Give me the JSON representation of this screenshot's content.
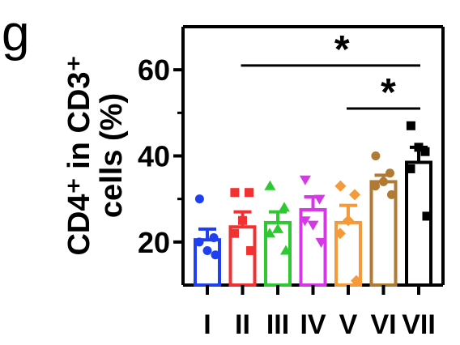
{
  "panel_label": "g",
  "chart_data": {
    "type": "bar",
    "categories": [
      "I",
      "II",
      "III",
      "IV",
      "V",
      "VI",
      "VII"
    ],
    "colors": [
      "#1f3ff2",
      "#f23232",
      "#2ec832",
      "#d638e8",
      "#f59a3a",
      "#b07a35",
      "#000000"
    ],
    "means": [
      20.5,
      23.5,
      24.5,
      27.5,
      24.5,
      34,
      38.5
    ],
    "sem": [
      2.5,
      3.5,
      2.5,
      3,
      4,
      1.5,
      3.5
    ],
    "points": [
      [
        30,
        21,
        18,
        20,
        17
      ],
      [
        31.5,
        31.5,
        25,
        22,
        18
      ],
      [
        33,
        28,
        23,
        22,
        18
      ],
      [
        34.5,
        30,
        24,
        25,
        20
      ],
      [
        33,
        31,
        25,
        22,
        11
      ],
      [
        40,
        36,
        34,
        33,
        31
      ],
      [
        47,
        41,
        42,
        37,
        26
      ]
    ],
    "ylabel": "CD4⁺ in CD3⁺ cells (%)",
    "ylabel_lines": [
      "CD4⁺ in CD3⁺",
      "cells (%)"
    ],
    "ylim": [
      10,
      70
    ],
    "yticks": [
      20,
      40,
      60
    ],
    "annotations": [
      {
        "from": "II",
        "to": "VII",
        "label": "*",
        "y": 61
      },
      {
        "from": "V",
        "to": "VII",
        "label": "*",
        "y": 51
      }
    ]
  }
}
